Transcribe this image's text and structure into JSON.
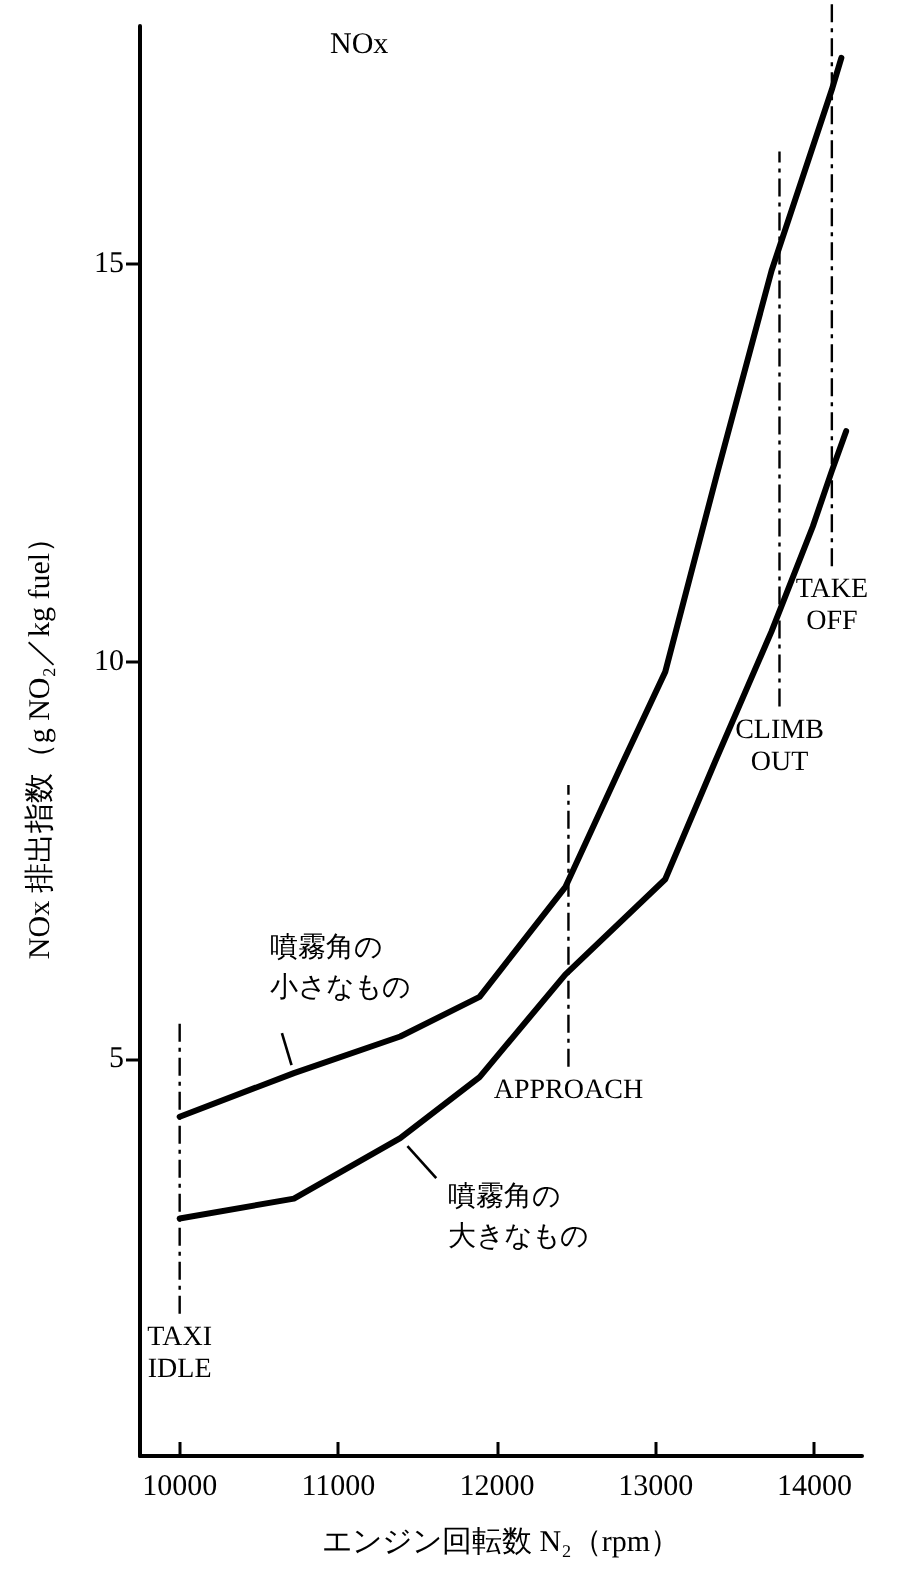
{
  "chart_data": {
    "type": "line",
    "title": "NOx",
    "xlabel": "エンジン回転数 N₂（rpm）",
    "ylabel": "NOx 排出指数（g NO₂／kg fuel）",
    "x": [
      10000,
      10720,
      11390,
      11890,
      12430,
      12790,
      13060,
      13390,
      13730,
      14110,
      14170
    ],
    "series": [
      {
        "name": "噴霧角の小さなもの",
        "color": "#000000",
        "values": [
          4.27,
          4.82,
          5.28,
          5.78,
          7.16,
          8.72,
          9.87,
          12.39,
          14.92,
          17.2,
          17.6
        ]
      },
      {
        "name": "噴霧角の大きなもの",
        "color": "#000000",
        "x": [
          10000,
          10720,
          11390,
          11890,
          12430,
          13060,
          13370,
          13730,
          13990,
          14110,
          14200
        ],
        "values": [
          2.99,
          3.24,
          4.0,
          4.77,
          6.06,
          7.26,
          8.72,
          10.38,
          11.7,
          12.4,
          12.9
        ]
      }
    ],
    "xlim": [
      9750,
      14300
    ],
    "xticks": [
      10000,
      11000,
      12000,
      13000,
      14000
    ],
    "ylim": [
      0,
      18
    ],
    "yticks": [
      5,
      10,
      15
    ],
    "ref_lines": [
      {
        "axis": "x",
        "value": 10000,
        "label": "TAXI\nIDLE",
        "line_style": "dashed"
      },
      {
        "axis": "x",
        "value": 12450,
        "label": "APPROACH",
        "line_style": "dashed"
      },
      {
        "axis": "x",
        "value": 13780,
        "label": "CLIMB\nOUT",
        "line_style": "dashed"
      },
      {
        "axis": "x",
        "value": 14110,
        "label": "TAKE\nOFF",
        "line_style": "dashed"
      }
    ],
    "grid": false,
    "marker": "none",
    "line_style": "solid"
  }
}
